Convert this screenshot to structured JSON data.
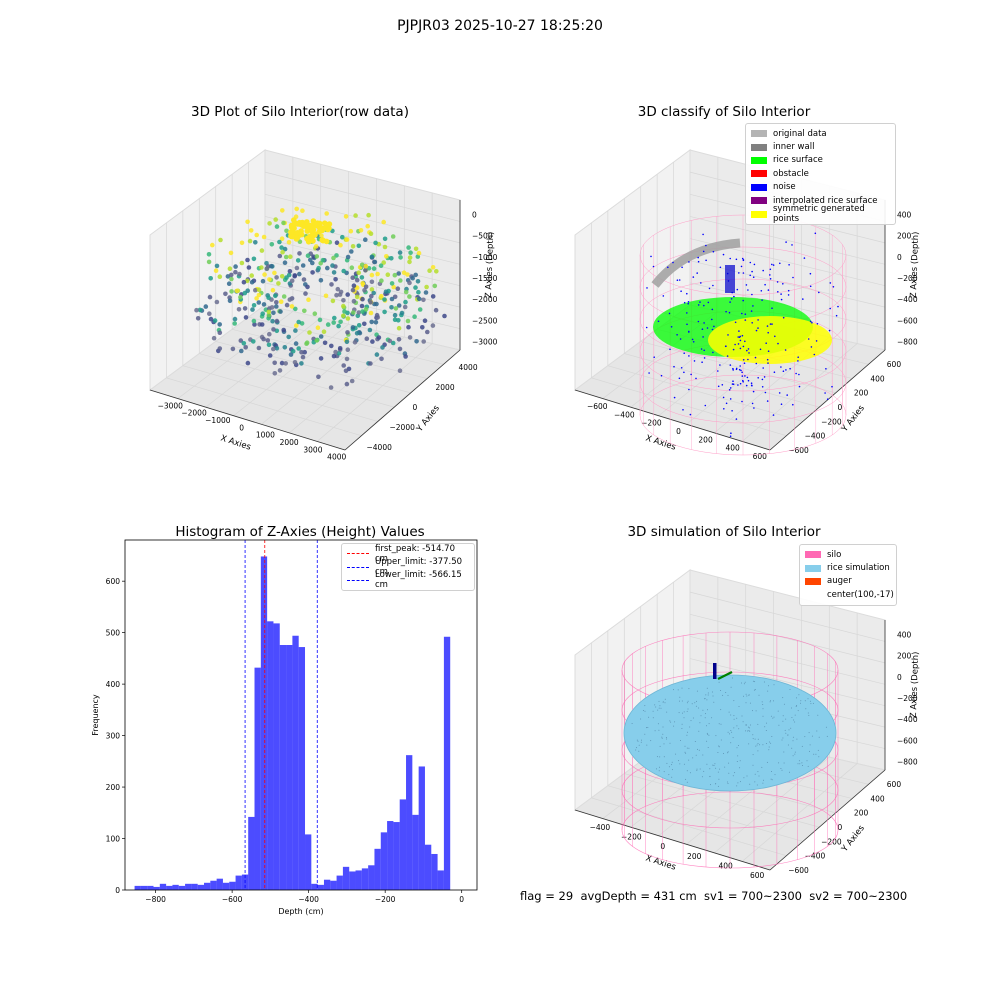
{
  "figure": {
    "suptitle": "PJPJR03 2025-10-27 18:25:20",
    "footer": "flag = 29  avgDepth = 431 cm  sv1 = 700~2300  sv2 = 700~2300"
  },
  "panels": {
    "raw": {
      "title": "3D Plot of Silo Interior(row data)",
      "xlabel": "X Axies",
      "ylabel": "Y Axies",
      "zlabel": "Z Axies (Depth)",
      "xticks": [
        "−3000",
        "−2000",
        "−1000",
        "0",
        "1000",
        "2000",
        "3000",
        "4000"
      ],
      "yticks": [
        "−4000",
        "−2000",
        "0",
        "2000",
        "4000"
      ],
      "zticks": [
        "0",
        "−500",
        "−1000",
        "−1500",
        "−2000",
        "−2500",
        "−3000"
      ]
    },
    "classify": {
      "title": "3D classify of Silo Interior",
      "xlabel": "X Axies",
      "ylabel": "Y Axies",
      "zlabel": "Z Axies (Depth)",
      "xticks": [
        "−600",
        "−400",
        "−200",
        "0",
        "200",
        "400",
        "600"
      ],
      "yticks": [
        "−600",
        "−400",
        "−200",
        "0",
        "200",
        "400",
        "600"
      ],
      "zticks": [
        "400",
        "200",
        "0",
        "−200",
        "−400",
        "−600",
        "−800"
      ],
      "legend": [
        {
          "label": "original data",
          "color": "#b4b4b4"
        },
        {
          "label": "inner wall",
          "color": "#808080"
        },
        {
          "label": "rice surface",
          "color": "#00ff00"
        },
        {
          "label": "obstacle",
          "color": "#ff0000"
        },
        {
          "label": "noise",
          "color": "#0000ff"
        },
        {
          "label": "interpolated rice surface",
          "color": "#800080"
        },
        {
          "label": "symmetric generated points",
          "color": "#ffff00"
        }
      ]
    },
    "simulation": {
      "title": "3D simulation of Silo Interior",
      "xlabel": "X Axies",
      "ylabel": "Y Axies",
      "zlabel": "Z Axies (Depth)",
      "xticks": [
        "−400",
        "−200",
        "0",
        "200",
        "400",
        "600"
      ],
      "yticks": [
        "−600",
        "−400",
        "−200",
        "0",
        "200",
        "400",
        "600"
      ],
      "zticks": [
        "400",
        "200",
        "0",
        "−200",
        "−400",
        "−600",
        "−800"
      ],
      "legend": [
        {
          "label": "silo",
          "color": "#ff69b4"
        },
        {
          "label": "rice simulation",
          "color": "#87ceeb"
        },
        {
          "label": "auger",
          "color": "#ff4500"
        },
        {
          "label": "center(100,-17)",
          "color": ""
        }
      ]
    }
  },
  "chart_data": [
    {
      "type": "bar",
      "title": "Histogram of Z-Axies (Height) Values",
      "xlabel": "Depth (cm)",
      "ylabel": "Frequency",
      "xlim": [
        -880,
        40
      ],
      "ylim": [
        0,
        680
      ],
      "xticks": [
        -800,
        -600,
        -400,
        -200,
        0
      ],
      "yticks": [
        0,
        100,
        200,
        300,
        400,
        500,
        600
      ],
      "bin_width": 16.5,
      "bin_left_edges": [
        -855,
        -838.5,
        -822,
        -805.5,
        -789,
        -772.5,
        -756,
        -739.5,
        -723,
        -706.5,
        -690,
        -673.5,
        -657,
        -640.5,
        -624,
        -607.5,
        -591,
        -574.5,
        -558,
        -541.5,
        -525,
        -508.5,
        -492,
        -475.5,
        -459,
        -442.5,
        -426,
        -409.5,
        -393,
        -376.5,
        -360,
        -343.5,
        -327,
        -310.5,
        -294,
        -277.5,
        -261,
        -244.5,
        -228,
        -211.5,
        -195,
        -178.5,
        -162,
        -145.5,
        -129,
        -112.5,
        -96,
        -79.5,
        -63,
        -46.5,
        -30,
        -13.5
      ],
      "values": [
        8,
        8,
        8,
        6,
        12,
        8,
        10,
        8,
        12,
        12,
        10,
        14,
        18,
        22,
        14,
        16,
        28,
        30,
        142,
        432,
        648,
        522,
        518,
        476,
        476,
        494,
        472,
        108,
        12,
        10,
        20,
        18,
        28,
        45,
        36,
        38,
        42,
        48,
        80,
        112,
        134,
        132,
        176,
        262,
        146,
        240,
        88,
        70,
        38,
        492,
        0,
        0
      ],
      "color": "#0000ff",
      "lines": [
        {
          "label": "first_peak: -514.70 cm",
          "x": -514.7,
          "color": "#ff0000"
        },
        {
          "label": "Upper_limit: -377.50 cm",
          "x": -377.5,
          "color": "#0000ff"
        },
        {
          "label": "Lower_limit: -566.15 cm",
          "x": -566.15,
          "color": "#0000ff"
        }
      ]
    }
  ]
}
